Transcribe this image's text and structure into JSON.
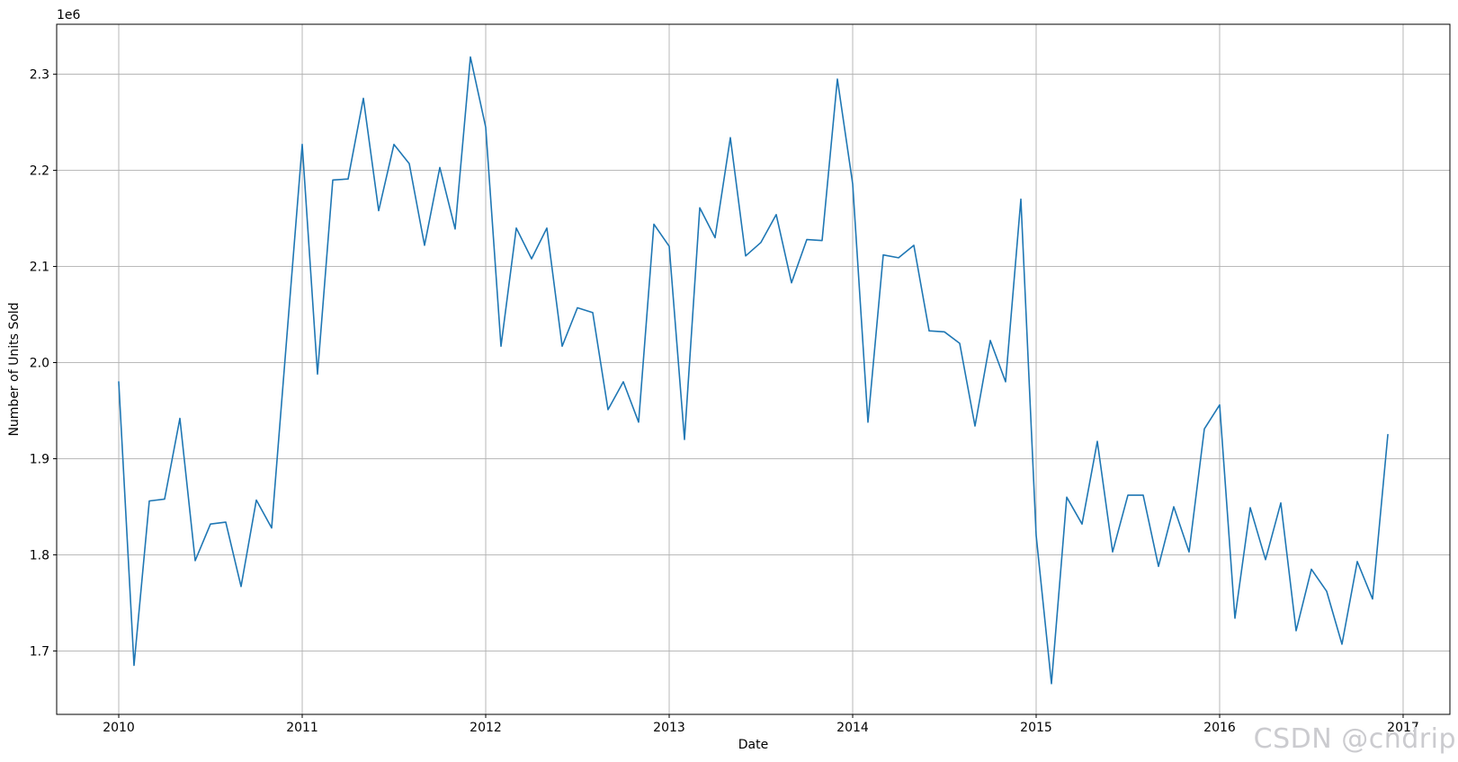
{
  "page": {
    "background": "#ffffff"
  },
  "watermark": {
    "text": "CSDN @cndrip"
  },
  "chart_data": {
    "type": "line",
    "title": "",
    "xlabel": "Date",
    "ylabel": "Number of Units Sold",
    "y_offset_label": "1e6",
    "grid": true,
    "legend_position": "none",
    "colors": {
      "line": "#1f77b4",
      "grid": "#b0b0b0",
      "spine": "#000000",
      "tick_label": "#000000",
      "watermark": "#cbcbcf"
    },
    "ylim": [
      1634000,
      2352000
    ],
    "xlim_month_index": [
      -4.06,
      87.06
    ],
    "x_ticks": [
      {
        "label": "2010",
        "month": 0
      },
      {
        "label": "2011",
        "month": 12
      },
      {
        "label": "2012",
        "month": 24
      },
      {
        "label": "2013",
        "month": 36
      },
      {
        "label": "2014",
        "month": 48
      },
      {
        "label": "2015",
        "month": 60
      },
      {
        "label": "2016",
        "month": 72
      },
      {
        "label": "2017",
        "month": 84
      }
    ],
    "y_ticks": [
      {
        "label": "1.7",
        "value": 1700000
      },
      {
        "label": "1.8",
        "value": 1800000
      },
      {
        "label": "1.9",
        "value": 1900000
      },
      {
        "label": "2.0",
        "value": 2000000
      },
      {
        "label": "2.1",
        "value": 2100000
      },
      {
        "label": "2.2",
        "value": 2200000
      },
      {
        "label": "2.3",
        "value": 2300000
      }
    ],
    "series": [
      {
        "name": "Number of Units Sold",
        "dates": [
          "2010-01",
          "2010-02",
          "2010-03",
          "2010-04",
          "2010-05",
          "2010-06",
          "2010-07",
          "2010-08",
          "2010-09",
          "2010-10",
          "2010-11",
          "2010-12",
          "2011-01",
          "2011-02",
          "2011-03",
          "2011-04",
          "2011-05",
          "2011-06",
          "2011-07",
          "2011-08",
          "2011-09",
          "2011-10",
          "2011-11",
          "2011-12",
          "2012-01",
          "2012-02",
          "2012-03",
          "2012-04",
          "2012-05",
          "2012-06",
          "2012-07",
          "2012-08",
          "2012-09",
          "2012-10",
          "2012-11",
          "2012-12",
          "2013-01",
          "2013-02",
          "2013-03",
          "2013-04",
          "2013-05",
          "2013-06",
          "2013-07",
          "2013-08",
          "2013-09",
          "2013-10",
          "2013-11",
          "2013-12",
          "2014-01",
          "2014-02",
          "2014-03",
          "2014-04",
          "2014-05",
          "2014-06",
          "2014-07",
          "2014-08",
          "2014-09",
          "2014-10",
          "2014-11",
          "2014-12",
          "2015-01",
          "2015-02",
          "2015-03",
          "2015-04",
          "2015-05",
          "2015-06",
          "2015-07",
          "2015-08",
          "2015-09",
          "2015-10",
          "2015-11",
          "2015-12",
          "2016-01",
          "2016-02",
          "2016-03",
          "2016-04",
          "2016-05",
          "2016-06",
          "2016-07",
          "2016-08",
          "2016-09",
          "2016-10",
          "2016-11",
          "2016-12"
        ],
        "values": [
          1980000,
          1685000,
          1856000,
          1858000,
          1942000,
          1794000,
          1832000,
          1834000,
          1767000,
          1857000,
          1828000,
          2028000,
          2227000,
          1988000,
          2190000,
          2191000,
          2275000,
          2158000,
          2227000,
          2207000,
          2122000,
          2203000,
          2139000,
          2318000,
          2245000,
          2017000,
          2140000,
          2108000,
          2140000,
          2017000,
          2057000,
          2052000,
          1951000,
          1980000,
          1938000,
          2144000,
          2121000,
          1920000,
          2161000,
          2130000,
          2234000,
          2111000,
          2125000,
          2154000,
          2083000,
          2128000,
          2127000,
          2295000,
          2186000,
          1938000,
          2112000,
          2109000,
          2122000,
          2033000,
          2032000,
          2020000,
          1934000,
          2023000,
          1980000,
          2170000,
          1820000,
          1666000,
          1860000,
          1832000,
          1918000,
          1803000,
          1862000,
          1862000,
          1788000,
          1850000,
          1803000,
          1931000,
          1956000,
          1734000,
          1849000,
          1795000,
          1854000,
          1721000,
          1785000,
          1762000,
          1707000,
          1793000,
          1754000,
          1925000
        ]
      }
    ]
  }
}
